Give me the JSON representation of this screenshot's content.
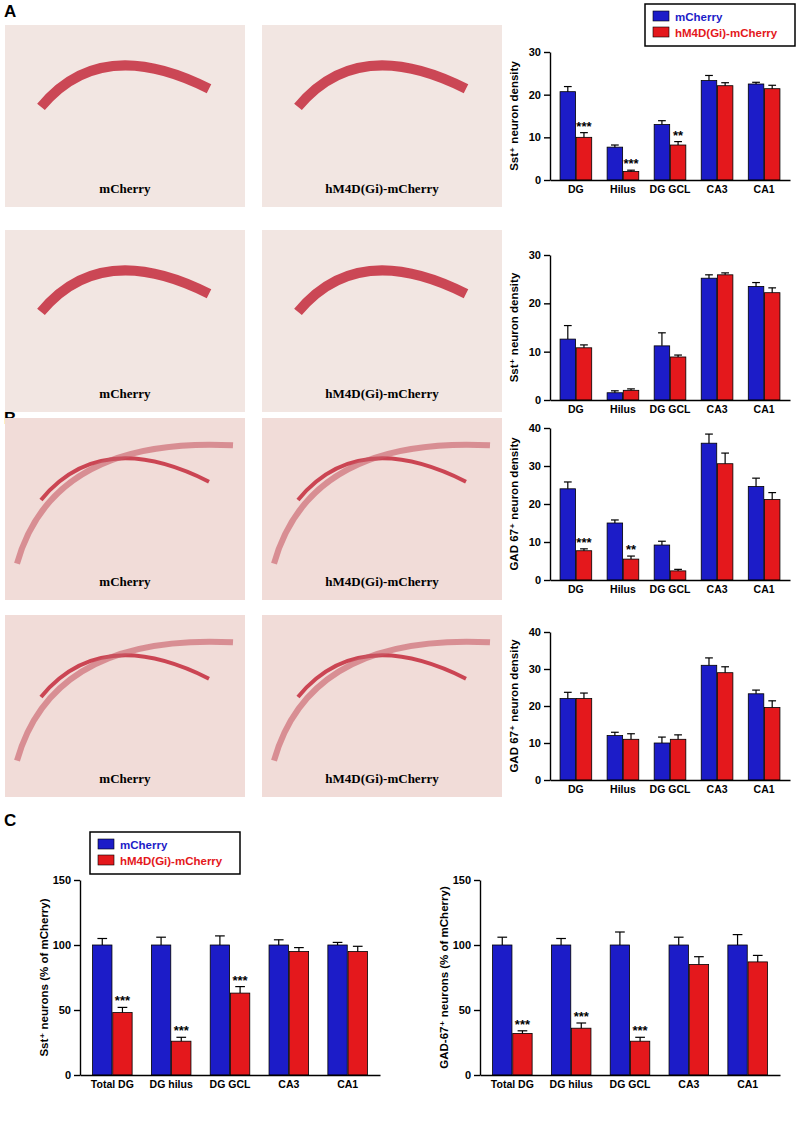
{
  "panel_labels": [
    "A",
    "B",
    "C"
  ],
  "image_labels": [
    [
      "mCherry",
      "hM4D(Gi)-mCherry"
    ],
    [
      "mCherry",
      "hM4D(Gi)-mCherry"
    ],
    [
      "mCherry",
      "hM4D(Gi)-mCherry"
    ],
    [
      "mCherry",
      "hM4D(Gi)-mCherry"
    ]
  ],
  "chart_data": [
    {
      "type": "bar",
      "y_label": "Sst⁺ neuron density",
      "categories": [
        "DG",
        "Hilus",
        "DG GCL",
        "CA3",
        "CA1"
      ],
      "ylim": [
        0,
        30
      ],
      "yticks": [
        0,
        10,
        20,
        30
      ],
      "legend": "top-right",
      "series": [
        {
          "name": "mCherry",
          "color": "#1c1cc8",
          "values": [
            20.7,
            7.7,
            13.0,
            23.3,
            22.5
          ],
          "errors": [
            1.2,
            0.5,
            0.9,
            1.2,
            0.4
          ]
        },
        {
          "name": "hM4D(Gi)-mCherry",
          "color": "#e4181c",
          "values": [
            10.0,
            2.0,
            8.2,
            22.1,
            21.4
          ],
          "errors": [
            1.1,
            0.3,
            0.8,
            0.7,
            0.8
          ]
        }
      ],
      "annotations": [
        "***",
        "***",
        "**",
        null,
        null
      ]
    },
    {
      "type": "bar",
      "y_label": "Sst⁺ neuron density",
      "categories": [
        "DG",
        "Hilus",
        "DG GCL",
        "CA3",
        "CA1"
      ],
      "ylim": [
        0,
        30
      ],
      "yticks": [
        0,
        10,
        20,
        30
      ],
      "series": [
        {
          "color": "#1c1cc8",
          "values": [
            12.6,
            1.5,
            11.2,
            25.2,
            23.5
          ],
          "errors": [
            2.8,
            0.4,
            2.7,
            0.7,
            0.8
          ]
        },
        {
          "color": "#e4181c",
          "values": [
            10.8,
            2.0,
            8.9,
            25.9,
            22.2
          ],
          "errors": [
            0.6,
            0.3,
            0.4,
            0.4,
            1.0
          ]
        }
      ]
    },
    {
      "type": "bar",
      "y_label": "GAD 67⁺ neuron density",
      "categories": [
        "DG",
        "Hilus",
        "DG GCL",
        "CA3",
        "CA1"
      ],
      "ylim": [
        0,
        40
      ],
      "yticks": [
        0,
        10,
        20,
        30,
        40
      ],
      "series": [
        {
          "color": "#1c1cc8",
          "values": [
            24.0,
            15.0,
            9.2,
            36.0,
            24.6
          ],
          "errors": [
            1.8,
            0.8,
            1.0,
            2.4,
            2.2
          ]
        },
        {
          "color": "#e4181c",
          "values": [
            7.7,
            5.5,
            2.4,
            30.6,
            21.2
          ],
          "errors": [
            0.5,
            0.8,
            0.4,
            2.8,
            1.8
          ]
        }
      ],
      "annotations": [
        "***",
        "**",
        null,
        null,
        null
      ]
    },
    {
      "type": "bar",
      "y_label": "GAD 67⁺ neuron density",
      "categories": [
        "DG",
        "Hilus",
        "DG GCL",
        "CA3",
        "CA1"
      ],
      "ylim": [
        0,
        40
      ],
      "yticks": [
        0,
        10,
        20,
        30,
        40
      ],
      "series": [
        {
          "color": "#1c1cc8",
          "values": [
            22.0,
            12.0,
            10.0,
            31.0,
            23.3
          ],
          "errors": [
            1.7,
            0.9,
            1.6,
            2.0,
            1.0
          ]
        },
        {
          "color": "#e4181c",
          "values": [
            22.0,
            11.0,
            11.0,
            29.0,
            19.6
          ],
          "errors": [
            1.5,
            1.5,
            1.2,
            1.6,
            1.8
          ]
        }
      ]
    },
    {
      "type": "bar",
      "y_label": "Sst⁺ neurons (% of mCherry)",
      "categories": [
        "Total DG",
        "DG hilus",
        "DG GCL",
        "CA3",
        "CA1"
      ],
      "ylim": [
        0,
        150
      ],
      "yticks": [
        0,
        50,
        100,
        150
      ],
      "legend": "top-left",
      "series": [
        {
          "name": "mCherry",
          "color": "#1c1cc8",
          "values": [
            100,
            100,
            100,
            100,
            100
          ],
          "errors": [
            5,
            6,
            7,
            4,
            2
          ]
        },
        {
          "name": "hM4D(Gi)-mCherry",
          "color": "#e4181c",
          "values": [
            48,
            26,
            63,
            95,
            95
          ],
          "errors": [
            4,
            3,
            5,
            3,
            4
          ]
        }
      ],
      "annotations": [
        "***",
        "***",
        "***",
        null,
        null
      ]
    },
    {
      "type": "bar",
      "y_label": "GAD-67⁺ neurons (% of mCherry)",
      "categories": [
        "Total DG",
        "DG hilus",
        "DG GCL",
        "CA3",
        "CA1"
      ],
      "ylim": [
        0,
        150
      ],
      "yticks": [
        0,
        50,
        100,
        150
      ],
      "series": [
        {
          "color": "#1c1cc8",
          "values": [
            100,
            100,
            100,
            100,
            100
          ],
          "errors": [
            6,
            5,
            10,
            6,
            8
          ]
        },
        {
          "color": "#e4181c",
          "values": [
            32,
            36,
            26,
            85,
            87
          ],
          "errors": [
            2,
            4,
            3,
            6,
            5
          ]
        }
      ],
      "annotations": [
        "***",
        "***",
        "***",
        null,
        null
      ]
    }
  ]
}
